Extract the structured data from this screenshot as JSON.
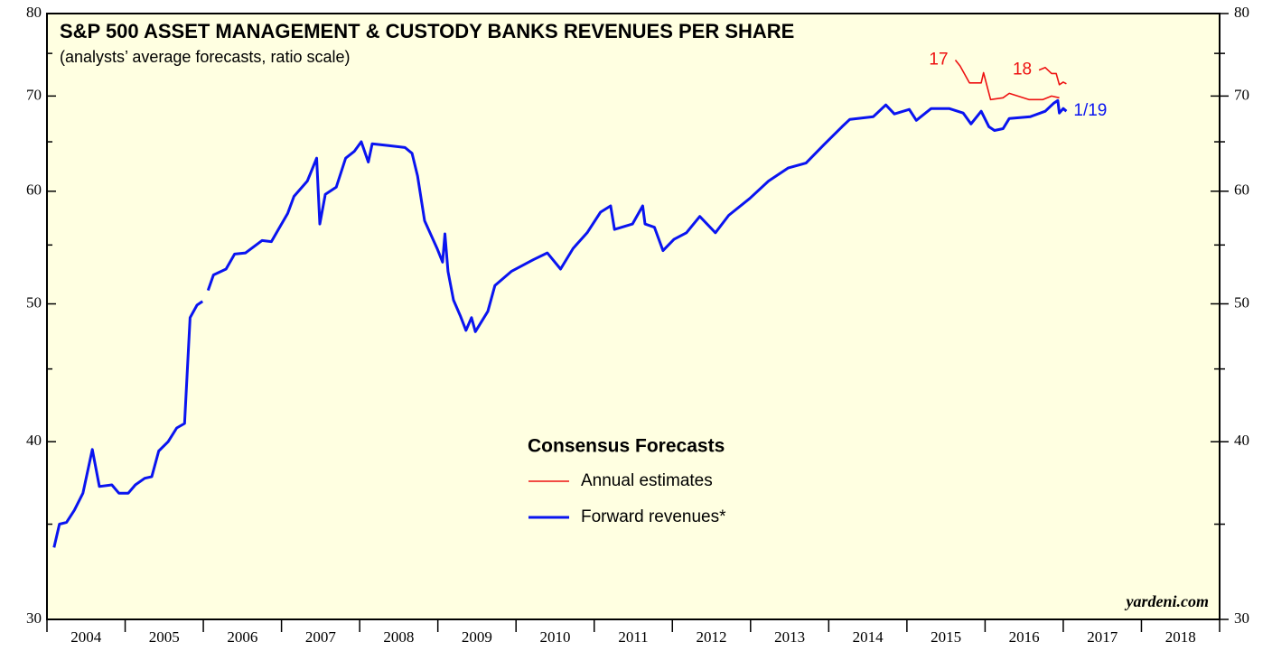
{
  "chart_data": {
    "type": "line",
    "title": "S&P 500 ASSET MANAGEMENT & CUSTODY BANKS REVENUES PER SHARE",
    "subtitle": "(analysts’ average forecasts, ratio scale)",
    "log_scale": true,
    "xlim": [
      2004,
      2019
    ],
    "xticks": [
      2004,
      2005,
      2006,
      2007,
      2008,
      2009,
      2010,
      2011,
      2012,
      2013,
      2014,
      2015,
      2016,
      2017,
      2018,
      2019
    ],
    "xtick_labels": [
      {
        "value": 2004.5,
        "label": "2004"
      },
      {
        "value": 2005.5,
        "label": "2005"
      },
      {
        "value": 2006.5,
        "label": "2006"
      },
      {
        "value": 2007.5,
        "label": "2007"
      },
      {
        "value": 2008.5,
        "label": "2008"
      },
      {
        "value": 2009.5,
        "label": "2009"
      },
      {
        "value": 2010.5,
        "label": "2010"
      },
      {
        "value": 2011.5,
        "label": "2011"
      },
      {
        "value": 2012.5,
        "label": "2012"
      },
      {
        "value": 2013.5,
        "label": "2013"
      },
      {
        "value": 2014.5,
        "label": "2014"
      },
      {
        "value": 2015.5,
        "label": "2015"
      },
      {
        "value": 2016.5,
        "label": "2016"
      },
      {
        "value": 2017.5,
        "label": "2017"
      },
      {
        "value": 2018.5,
        "label": "2018"
      }
    ],
    "ylim": [
      30,
      80
    ],
    "yticks": [
      30,
      40,
      50,
      60,
      70,
      80
    ],
    "yminor_ticks": [
      35,
      45,
      55,
      65,
      75
    ],
    "y2lim": [
      30,
      80
    ],
    "y2ticks": [
      30,
      40,
      50,
      60,
      70,
      80
    ],
    "series": [
      {
        "name": "Forward revenues*",
        "color": "#0a14f0",
        "x": [
          2004.09,
          2004.16,
          2004.25,
          2004.35,
          2004.46,
          2004.58,
          2004.67,
          2004.83,
          2004.92,
          2005.04,
          2005.13,
          2005.25,
          2005.34,
          2005.43,
          2005.55,
          2005.66,
          2005.76,
          2005.83,
          2005.92,
          2005.99,
          null,
          2006.06,
          2006.13,
          2006.29,
          2006.4,
          2006.54,
          2006.75,
          2006.87,
          2007.08,
          2007.16,
          2007.33,
          2007.45,
          2007.49,
          2007.56,
          2007.7,
          2007.82,
          2007.93,
          2008.02,
          2008.11,
          2008.16,
          2008.37,
          2008.58,
          2008.67,
          2008.74,
          2008.83,
          2008.99,
          2009.06,
          2009.09,
          2009.13,
          2009.2,
          2009.29,
          2009.36,
          2009.43,
          2009.48,
          2009.64,
          2009.73,
          2009.94,
          2010.22,
          2010.4,
          2010.57,
          2010.73,
          2010.91,
          2011.08,
          2011.21,
          2011.26,
          2011.49,
          2011.62,
          2011.65,
          2011.77,
          2011.88,
          2012.02,
          2012.18,
          2012.35,
          2012.55,
          2012.72,
          2012.99,
          2013.23,
          2013.48,
          2013.71,
          2013.94,
          2014.17,
          2014.27,
          2014.57,
          2014.73,
          2014.84,
          2015.03,
          2015.12,
          2015.31,
          2015.54,
          2015.72,
          2015.82,
          2015.95,
          2016.05,
          2016.12,
          2016.23,
          2016.31,
          2016.58,
          2016.77,
          2016.88,
          2016.93,
          2016.95,
          2017.0,
          2017.04
        ],
        "values": [
          33.7,
          35.0,
          35.1,
          35.8,
          36.8,
          39.5,
          37.2,
          37.3,
          36.8,
          36.8,
          37.3,
          37.7,
          37.8,
          39.4,
          40.0,
          40.9,
          41.2,
          48.9,
          49.9,
          50.2,
          null,
          51.1,
          52.4,
          52.9,
          54.2,
          54.3,
          55.4,
          55.3,
          57.9,
          59.5,
          61.0,
          63.3,
          56.9,
          59.7,
          60.4,
          63.3,
          64.0,
          65.0,
          62.9,
          64.8,
          64.6,
          64.4,
          63.8,
          61.5,
          57.2,
          54.7,
          53.5,
          56.0,
          52.7,
          50.3,
          49.0,
          47.9,
          48.9,
          47.8,
          49.4,
          51.5,
          52.7,
          53.7,
          54.3,
          52.9,
          54.7,
          56.1,
          58.0,
          58.6,
          56.4,
          56.9,
          58.6,
          56.9,
          56.6,
          54.5,
          55.5,
          56.1,
          57.6,
          56.1,
          57.7,
          59.3,
          61.0,
          62.3,
          62.8,
          64.7,
          66.6,
          67.4,
          67.7,
          69.0,
          68.0,
          68.5,
          67.3,
          68.6,
          68.6,
          68.1,
          66.9,
          68.3,
          66.6,
          66.2,
          66.4,
          67.5,
          67.7,
          68.3,
          69.2,
          69.5,
          68.1,
          68.6,
          68.3
        ]
      },
      {
        "label": "17",
        "color": "#ee1111",
        "x": [
          2015.62,
          2015.68,
          2015.8,
          2015.95,
          2015.98,
          2016.07,
          2016.23,
          2016.31,
          2016.56,
          2016.74,
          2016.85,
          2016.95
        ],
        "values": [
          74.2,
          73.5,
          71.5,
          71.5,
          72.7,
          69.6,
          69.8,
          70.3,
          69.6,
          69.6,
          70.0,
          69.8
        ]
      },
      {
        "label": "18",
        "color": "#ee1111",
        "x": [
          2016.69,
          2016.77,
          2016.85,
          2016.91,
          2016.95,
          2017.0,
          2017.04
        ],
        "values": [
          73.0,
          73.3,
          72.6,
          72.6,
          71.3,
          71.6,
          71.4
        ]
      }
    ],
    "end_label": "1/19",
    "legend": {
      "title": "Consensus Forecasts",
      "entries": [
        {
          "label": "Annual estimates",
          "color": "#ee1111"
        },
        {
          "label": "Forward revenues*",
          "color": "#0a14f0"
        }
      ]
    },
    "source": "yardeni.com"
  }
}
